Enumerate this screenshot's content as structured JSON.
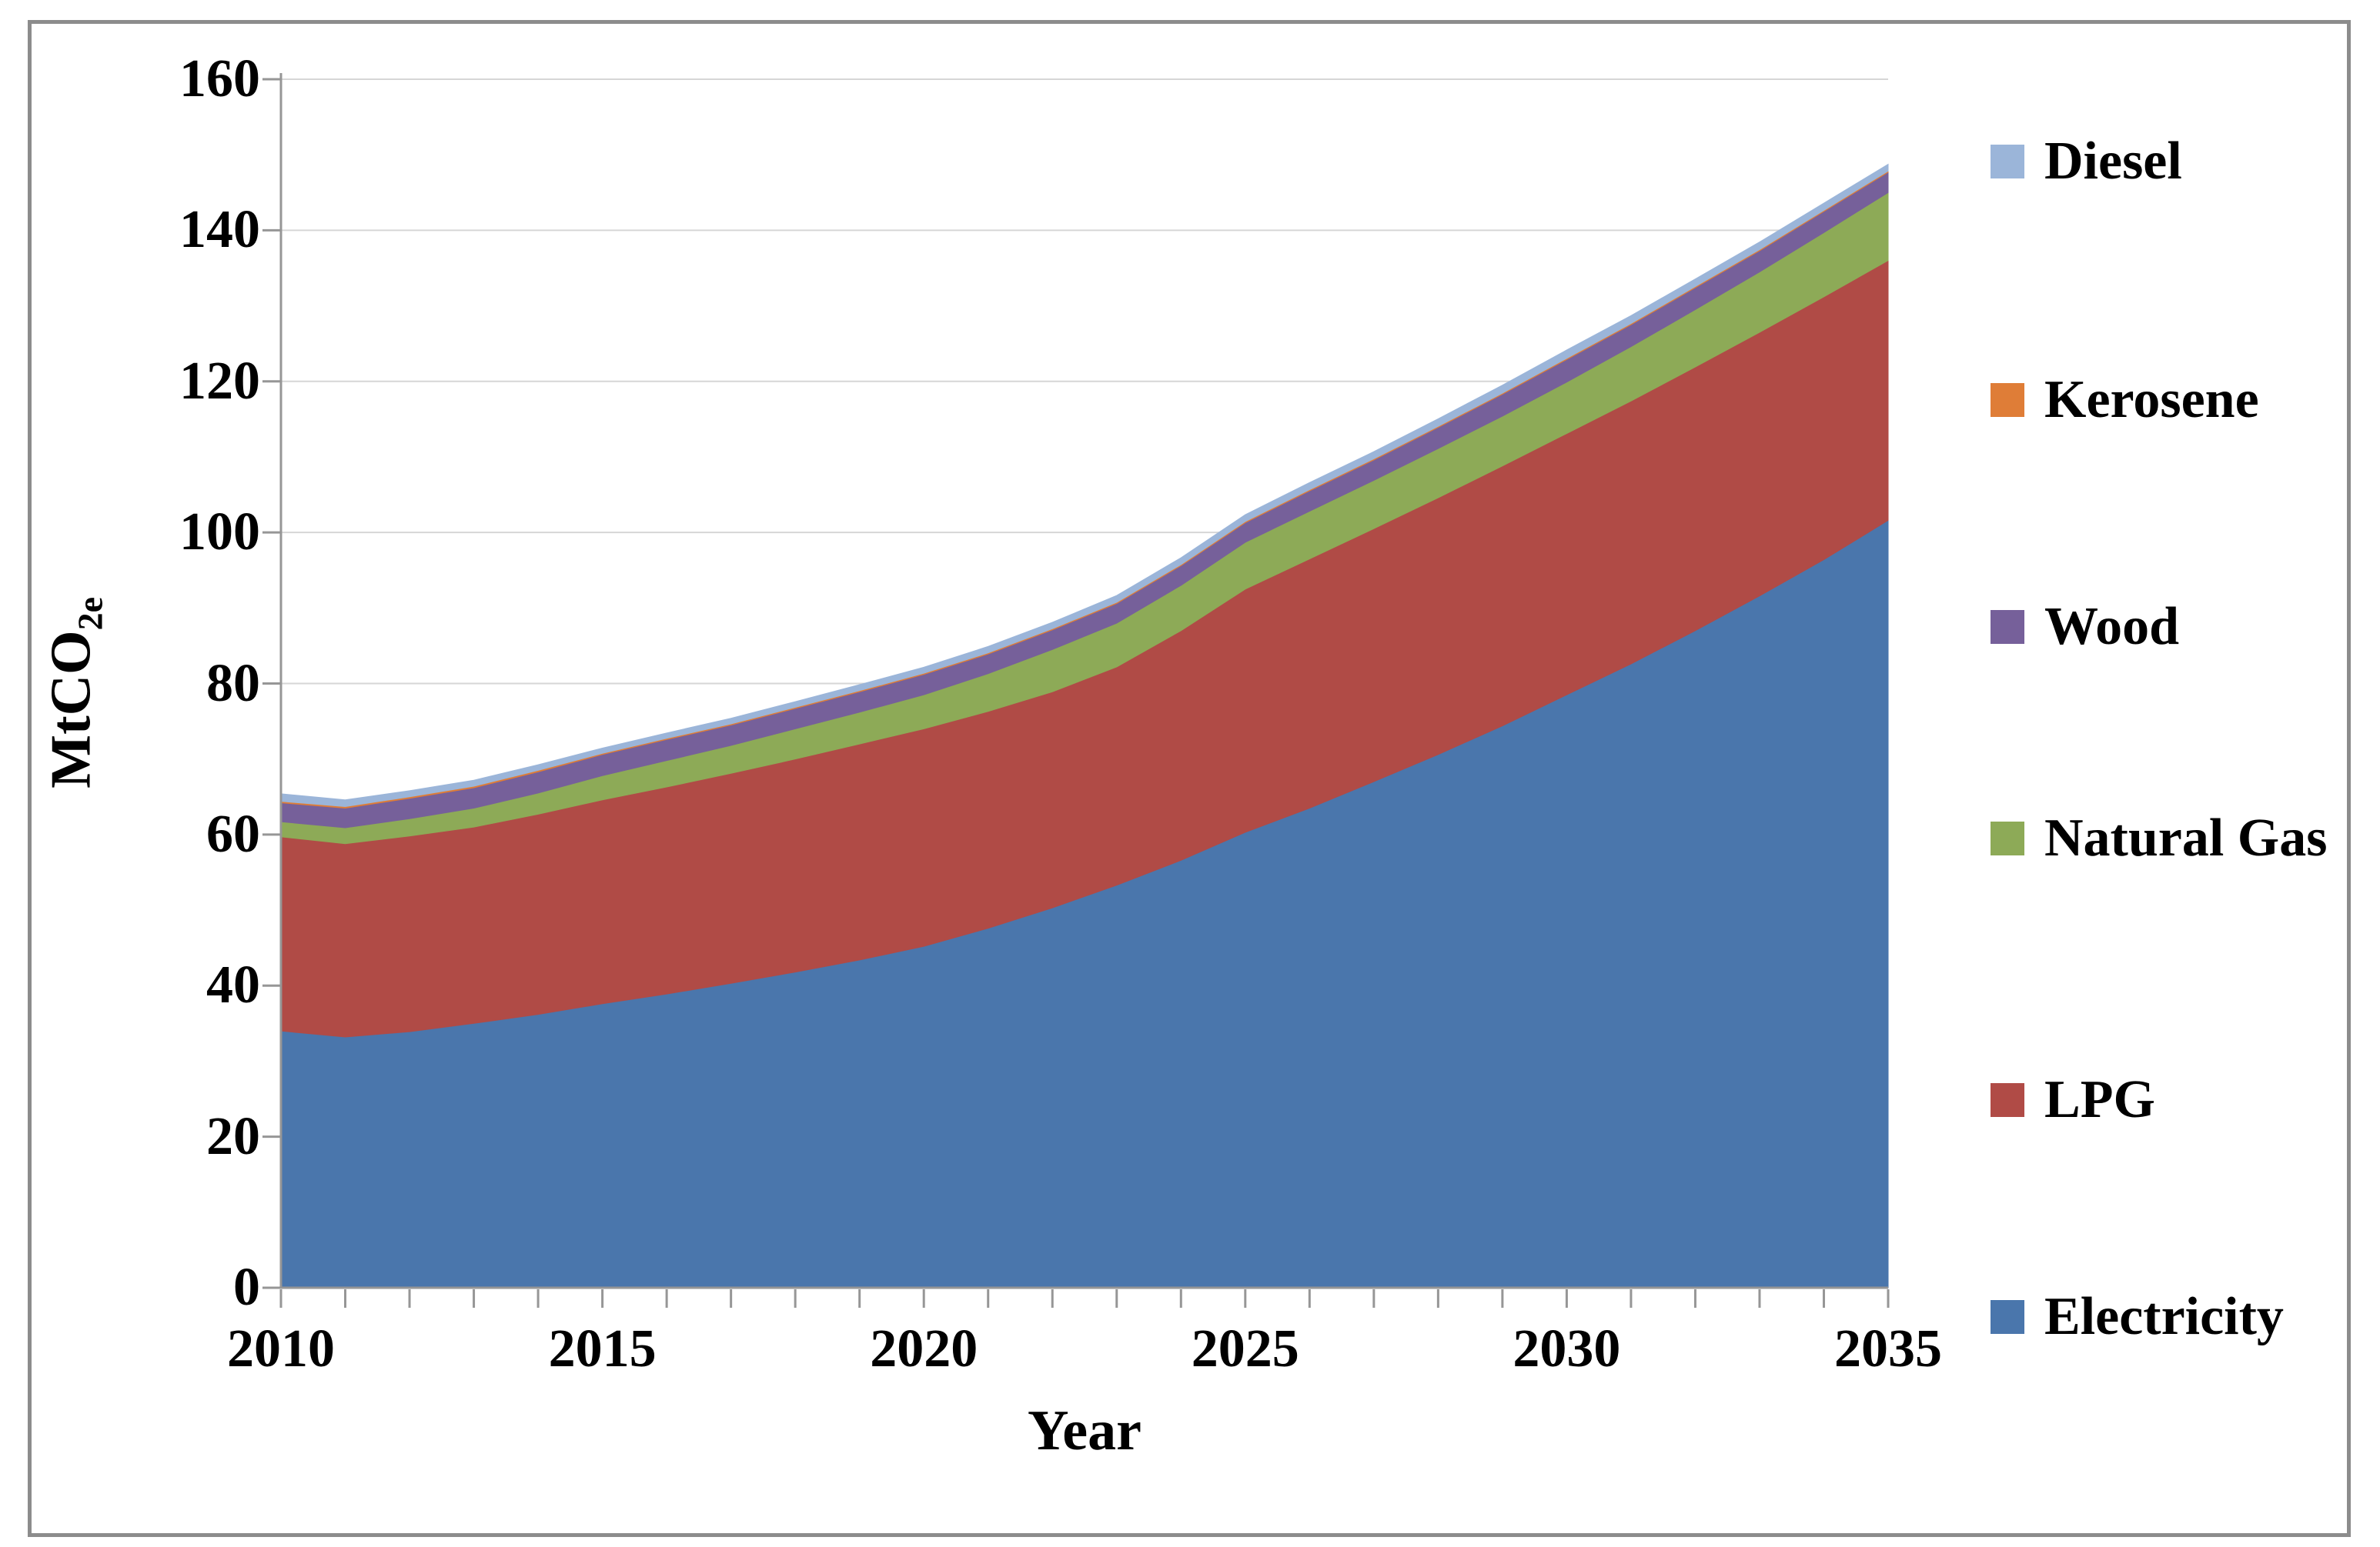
{
  "figure": {
    "background_color": "#FFFFFF",
    "border_color": "#8C8C8C",
    "gridline_color": "#D6D6D6",
    "axis_line_color": "#969696"
  },
  "chart_data": {
    "type": "area",
    "stacked": true,
    "title": "",
    "xlabel": "Year",
    "ylabel_main": "MtCO",
    "ylabel_sub": "2e",
    "x": [
      2010,
      2011,
      2012,
      2013,
      2014,
      2015,
      2016,
      2017,
      2018,
      2019,
      2020,
      2021,
      2022,
      2023,
      2024,
      2025,
      2026,
      2027,
      2028,
      2029,
      2030,
      2031,
      2032,
      2033,
      2034,
      2035
    ],
    "x_tick_labels": [
      "2010",
      "2015",
      "2020",
      "2025",
      "2030",
      "2035"
    ],
    "xlim": [
      2010,
      2035
    ],
    "ylim": [
      0,
      160
    ],
    "y_ticks": [
      0,
      20,
      40,
      60,
      80,
      100,
      120,
      140,
      160
    ],
    "grid": "horizontal",
    "legend_position": "right",
    "series": [
      {
        "name": "Electricity",
        "color": "#4A76AC",
        "values": [
          34.0,
          33.2,
          33.9,
          35.0,
          36.2,
          37.6,
          38.9,
          40.3,
          41.8,
          43.4,
          45.2,
          47.6,
          50.3,
          53.3,
          56.6,
          60.3,
          63.5,
          67.0,
          70.6,
          74.4,
          78.5,
          82.6,
          87.0,
          91.6,
          96.4,
          101.6
        ]
      },
      {
        "name": "LPG",
        "color": "#B04B46",
        "values": [
          25.7,
          25.6,
          25.9,
          26.0,
          26.5,
          27.0,
          27.4,
          27.8,
          28.2,
          28.6,
          28.8,
          28.7,
          28.6,
          28.9,
          30.4,
          32.2,
          33.0,
          33.5,
          34.0,
          34.4,
          34.6,
          34.8,
          34.9,
          34.9,
          34.8,
          34.4
        ]
      },
      {
        "name": "Natural Gas",
        "color": "#8DAA57",
        "values": [
          2.0,
          2.1,
          2.3,
          2.5,
          2.8,
          3.2,
          3.5,
          3.7,
          4.0,
          4.2,
          4.5,
          5.0,
          5.6,
          5.8,
          6.0,
          6.2,
          6.3,
          6.4,
          6.5,
          6.6,
          6.8,
          7.2,
          7.6,
          8.0,
          8.5,
          9.0
        ]
      },
      {
        "name": "Wood",
        "color": "#76609A",
        "values": [
          2.5,
          2.6,
          2.7,
          2.7,
          2.8,
          2.8,
          2.8,
          2.7,
          2.7,
          2.7,
          2.7,
          2.6,
          2.6,
          2.6,
          2.6,
          2.6,
          2.7,
          2.7,
          2.8,
          2.9,
          3.0,
          2.9,
          2.9,
          2.8,
          2.8,
          2.7
        ]
      },
      {
        "name": "Kerosene",
        "color": "#DF7D37",
        "values": [
          0.2,
          0.2,
          0.2,
          0.2,
          0.2,
          0.15,
          0.15,
          0.15,
          0.15,
          0.15,
          0.15,
          0.15,
          0.15,
          0.15,
          0.15,
          0.15,
          0.15,
          0.15,
          0.15,
          0.15,
          0.15,
          0.15,
          0.15,
          0.15,
          0.15,
          0.15
        ]
      },
      {
        "name": "Diesel",
        "color": "#9BB5D9",
        "values": [
          1.0,
          0.9,
          0.8,
          0.8,
          0.75,
          0.7,
          0.7,
          0.75,
          0.75,
          0.8,
          0.8,
          0.85,
          0.85,
          0.9,
          0.9,
          0.9,
          0.95,
          0.95,
          1.0,
          1.05,
          1.1,
          1.05,
          1.0,
          1.0,
          0.95,
          0.9
        ]
      }
    ],
    "legend_order_top_to_bottom": [
      "Diesel",
      "Kerosene",
      "Wood",
      "Natural Gas",
      "LPG",
      "Electricity"
    ]
  }
}
